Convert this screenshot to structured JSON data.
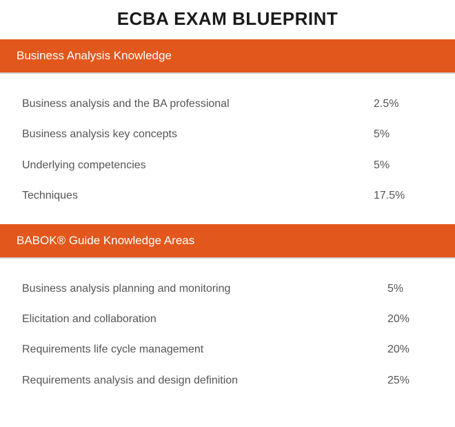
{
  "title": "ECBA EXAM BLUEPRINT",
  "colors": {
    "header_bg": "#e2571c",
    "header_text": "#ffffff",
    "title_text": "#1a1a1a",
    "body_text": "#555555",
    "background": "#ffffff",
    "divider": "#d0d0d0"
  },
  "typography": {
    "title_fontsize": 26,
    "title_weight": 700,
    "header_fontsize": 17,
    "header_weight": 400,
    "row_fontsize": 16
  },
  "sections": [
    {
      "header": "Business Analysis Knowledge",
      "rows": [
        {
          "label": "Business analysis and the BA professional",
          "value": "2.5%"
        },
        {
          "label": "Business analysis key concepts",
          "value": "5%"
        },
        {
          "label": "Underlying competencies",
          "value": "5%"
        },
        {
          "label": "Techniques",
          "value": "17.5%"
        }
      ]
    },
    {
      "header": "BABOK® Guide Knowledge Areas",
      "rows": [
        {
          "label": "Business analysis planning and monitoring",
          "value": "5%"
        },
        {
          "label": "Elicitation and collaboration",
          "value": "20%"
        },
        {
          "label": "Requirements life cycle management",
          "value": "20%"
        },
        {
          "label": "Requirements analysis and design definition",
          "value": "25%"
        }
      ]
    }
  ]
}
